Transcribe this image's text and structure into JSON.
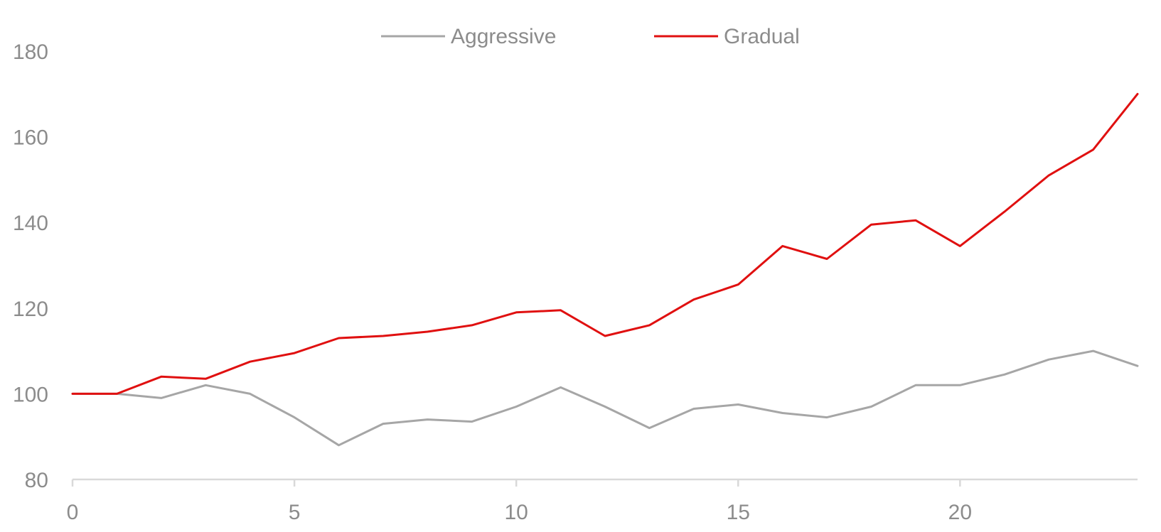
{
  "chart_data": {
    "type": "line",
    "x": [
      0,
      1,
      2,
      3,
      4,
      5,
      6,
      7,
      8,
      9,
      10,
      11,
      12,
      13,
      14,
      15,
      16,
      17,
      18,
      19,
      20,
      21,
      22,
      23,
      24
    ],
    "series": [
      {
        "name": "Aggressive",
        "color": "#a6a6a6",
        "values": [
          100,
          100,
          99,
          102,
          100,
          94.5,
          88,
          93,
          94,
          93.5,
          97,
          101.5,
          97,
          92,
          96.5,
          97.5,
          95.5,
          94.5,
          97,
          102,
          102,
          104.5,
          108,
          110,
          106.5
        ]
      },
      {
        "name": "Gradual",
        "color": "#e01010",
        "values": [
          100,
          100,
          104,
          103.5,
          107.5,
          109.5,
          113,
          113.5,
          114.5,
          116,
          119,
          119.5,
          113.5,
          116,
          122,
          125.5,
          134.5,
          131.5,
          139.5,
          140.5,
          134.5,
          142.5,
          151,
          157,
          170
        ]
      }
    ],
    "xlim": [
      0,
      24
    ],
    "ylim": [
      80,
      180
    ],
    "x_ticks": [
      0,
      5,
      10,
      15,
      20
    ],
    "y_ticks": [
      80,
      100,
      120,
      140,
      160,
      180
    ],
    "legend_position": "top-center",
    "grid": false,
    "axis_color": "#d9d9d9",
    "tick_color": "#8c8c8c"
  }
}
